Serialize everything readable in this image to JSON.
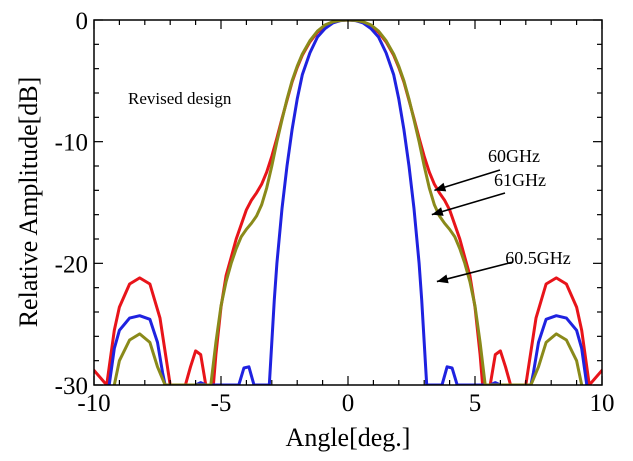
{
  "chart_data": {
    "type": "line",
    "title": "",
    "xlabel": "Angle[deg.]",
    "ylabel": "Relative Amplitude[dB]",
    "xlim": [
      -10,
      10
    ],
    "ylim": [
      -30,
      0
    ],
    "xticks": [
      -10,
      -5,
      0,
      5,
      10
    ],
    "yticks": [
      0,
      -10,
      -20,
      -30
    ],
    "xtick_labels": [
      "-10",
      "-5",
      "0",
      "5",
      "10"
    ],
    "ytick_labels": [
      "0",
      "-10",
      "-20",
      "-30"
    ],
    "grid": false,
    "note": "Revised design",
    "series": [
      {
        "name": "60GHz",
        "color": "#e8141a",
        "x": [
          -10,
          -9.5,
          -9.2,
          -9.0,
          -8.6,
          -8.2,
          -7.8,
          -7.4,
          -7.0,
          -6.8,
          -6.4,
          -6.2,
          -6.0,
          -5.8,
          -5.6,
          -5.5,
          -5.3,
          -5.2,
          -5.0,
          -4.8,
          -4.6,
          -4.4,
          -4.2,
          -4.0,
          -3.8,
          -3.6,
          -3.4,
          -3.2,
          -3.0,
          -2.8,
          -2.6,
          -2.4,
          -2.2,
          -2.0,
          -1.8,
          -1.5,
          -1.2,
          -0.9,
          -0.6,
          -0.3,
          0,
          0.3,
          0.6,
          0.9,
          1.2,
          1.5,
          1.8,
          2.0,
          2.2,
          2.4,
          2.6,
          2.8,
          3.0,
          3.2,
          3.4,
          3.6,
          3.8,
          4.0,
          4.2,
          4.4,
          4.6,
          4.8,
          5.0,
          5.2,
          5.3,
          5.5,
          5.6,
          5.8,
          6.0,
          6.2,
          6.4,
          6.8,
          7.0,
          7.4,
          7.8,
          8.2,
          8.6,
          9.0,
          9.2,
          9.5,
          10
        ],
        "y": [
          -28.8,
          -30,
          -25.5,
          -23.6,
          -21.7,
          -21.2,
          -21.7,
          -24.5,
          -30,
          -30,
          -30,
          -28.5,
          -27.2,
          -27.5,
          -30,
          -30,
          -30,
          -27.5,
          -23.6,
          -21.0,
          -19.5,
          -18.0,
          -16.8,
          -15.6,
          -14.8,
          -14.2,
          -13.5,
          -12.5,
          -11.2,
          -9.7,
          -8.1,
          -6.6,
          -5.1,
          -3.9,
          -2.9,
          -1.8,
          -1.0,
          -0.5,
          -0.2,
          -0.04,
          0,
          -0.04,
          -0.2,
          -0.5,
          -1.0,
          -1.8,
          -2.9,
          -3.9,
          -5.1,
          -6.6,
          -8.1,
          -9.7,
          -11.2,
          -12.5,
          -13.5,
          -14.2,
          -14.8,
          -15.6,
          -16.8,
          -18.0,
          -19.5,
          -21.0,
          -23.6,
          -27.5,
          -30,
          -30,
          -30,
          -27.5,
          -27.2,
          -28.5,
          -30,
          -30,
          -30,
          -24.5,
          -21.7,
          -21.2,
          -21.7,
          -23.6,
          -25.5,
          -30,
          -28.8
        ]
      },
      {
        "name": "60.5GHz",
        "color": "#1f22e0",
        "x": [
          -9.4,
          -9.2,
          -9.0,
          -8.6,
          -8.2,
          -7.8,
          -7.5,
          -7.3,
          -7.2,
          -6.0,
          -5.8,
          -5.6,
          -4.3,
          -4.1,
          -3.9,
          -3.7,
          -3.5,
          -3.1,
          -3.0,
          -2.9,
          -2.8,
          -2.6,
          -2.4,
          -2.2,
          -2.0,
          -1.8,
          -1.5,
          -1.2,
          -0.9,
          -0.6,
          -0.3,
          0,
          0.3,
          0.6,
          0.9,
          1.2,
          1.5,
          1.8,
          2.0,
          2.2,
          2.4,
          2.6,
          2.8,
          2.9,
          3.0,
          3.1,
          3.5,
          3.7,
          3.9,
          4.1,
          4.3,
          5.6,
          5.8,
          6.0,
          7.2,
          7.3,
          7.5,
          7.8,
          8.2,
          8.6,
          9.0,
          9.2,
          9.4
        ],
        "y": [
          -30,
          -27.0,
          -25.5,
          -24.5,
          -24.3,
          -24.6,
          -26.5,
          -29.0,
          -30,
          -30,
          -29.8,
          -30,
          -30,
          -28.6,
          -28.5,
          -30,
          -30,
          -30,
          -26.5,
          -23.0,
          -20.0,
          -15.5,
          -12.0,
          -9.0,
          -6.5,
          -4.5,
          -2.7,
          -1.4,
          -0.7,
          -0.25,
          -0.05,
          0,
          -0.05,
          -0.25,
          -0.7,
          -1.4,
          -2.7,
          -4.5,
          -6.5,
          -9.0,
          -12.0,
          -15.5,
          -20.0,
          -23.0,
          -26.5,
          -30,
          -30,
          -30,
          -28.5,
          -28.6,
          -30,
          -30,
          -29.8,
          -30,
          -30,
          -29.0,
          -26.5,
          -24.6,
          -24.3,
          -24.5,
          -25.5,
          -27.0,
          -30
        ]
      },
      {
        "name": "61GHz",
        "color": "#8a8a1a",
        "x": [
          -9.2,
          -9.0,
          -8.6,
          -8.2,
          -7.8,
          -7.5,
          -7.2,
          -5.4,
          -5.2,
          -5.0,
          -4.8,
          -4.6,
          -4.4,
          -4.2,
          -4.0,
          -3.8,
          -3.6,
          -3.4,
          -3.2,
          -3.0,
          -2.8,
          -2.6,
          -2.4,
          -2.2,
          -2.0,
          -1.8,
          -1.5,
          -1.2,
          -0.9,
          -0.6,
          -0.3,
          0,
          0.3,
          0.6,
          0.9,
          1.2,
          1.5,
          1.8,
          2.0,
          2.2,
          2.4,
          2.6,
          2.8,
          3.0,
          3.2,
          3.4,
          3.6,
          3.8,
          4.0,
          4.2,
          4.4,
          4.6,
          4.8,
          5.0,
          5.2,
          5.4,
          7.2,
          7.5,
          7.8,
          8.2,
          8.6,
          9.0,
          9.2
        ],
        "y": [
          -30,
          -28.0,
          -26.3,
          -25.8,
          -26.5,
          -28.5,
          -30,
          -30,
          -26.5,
          -23.5,
          -21.5,
          -20.0,
          -18.8,
          -17.8,
          -17.2,
          -16.7,
          -16.1,
          -15.2,
          -13.8,
          -12.0,
          -10.0,
          -8.2,
          -6.5,
          -5.0,
          -3.8,
          -2.8,
          -1.7,
          -0.9,
          -0.4,
          -0.15,
          -0.03,
          0,
          -0.03,
          -0.15,
          -0.4,
          -0.9,
          -1.7,
          -2.8,
          -3.8,
          -5.0,
          -6.5,
          -8.2,
          -10.0,
          -12.0,
          -13.8,
          -15.2,
          -16.1,
          -16.7,
          -17.2,
          -17.8,
          -18.8,
          -20.0,
          -21.5,
          -23.5,
          -26.5,
          -30,
          -30,
          -28.5,
          -26.5,
          -25.8,
          -26.3,
          -28.0,
          -30
        ]
      }
    ],
    "annotations": [
      {
        "text": "60GHz",
        "series": "60GHz",
        "x": 3.4,
        "y": -14.0
      },
      {
        "text": "61GHz",
        "series": "61GHz",
        "x": 3.3,
        "y": -16.0
      },
      {
        "text": "60.5GHz",
        "series": "60.5GHz",
        "x": 3.5,
        "y": -21.5
      }
    ]
  }
}
